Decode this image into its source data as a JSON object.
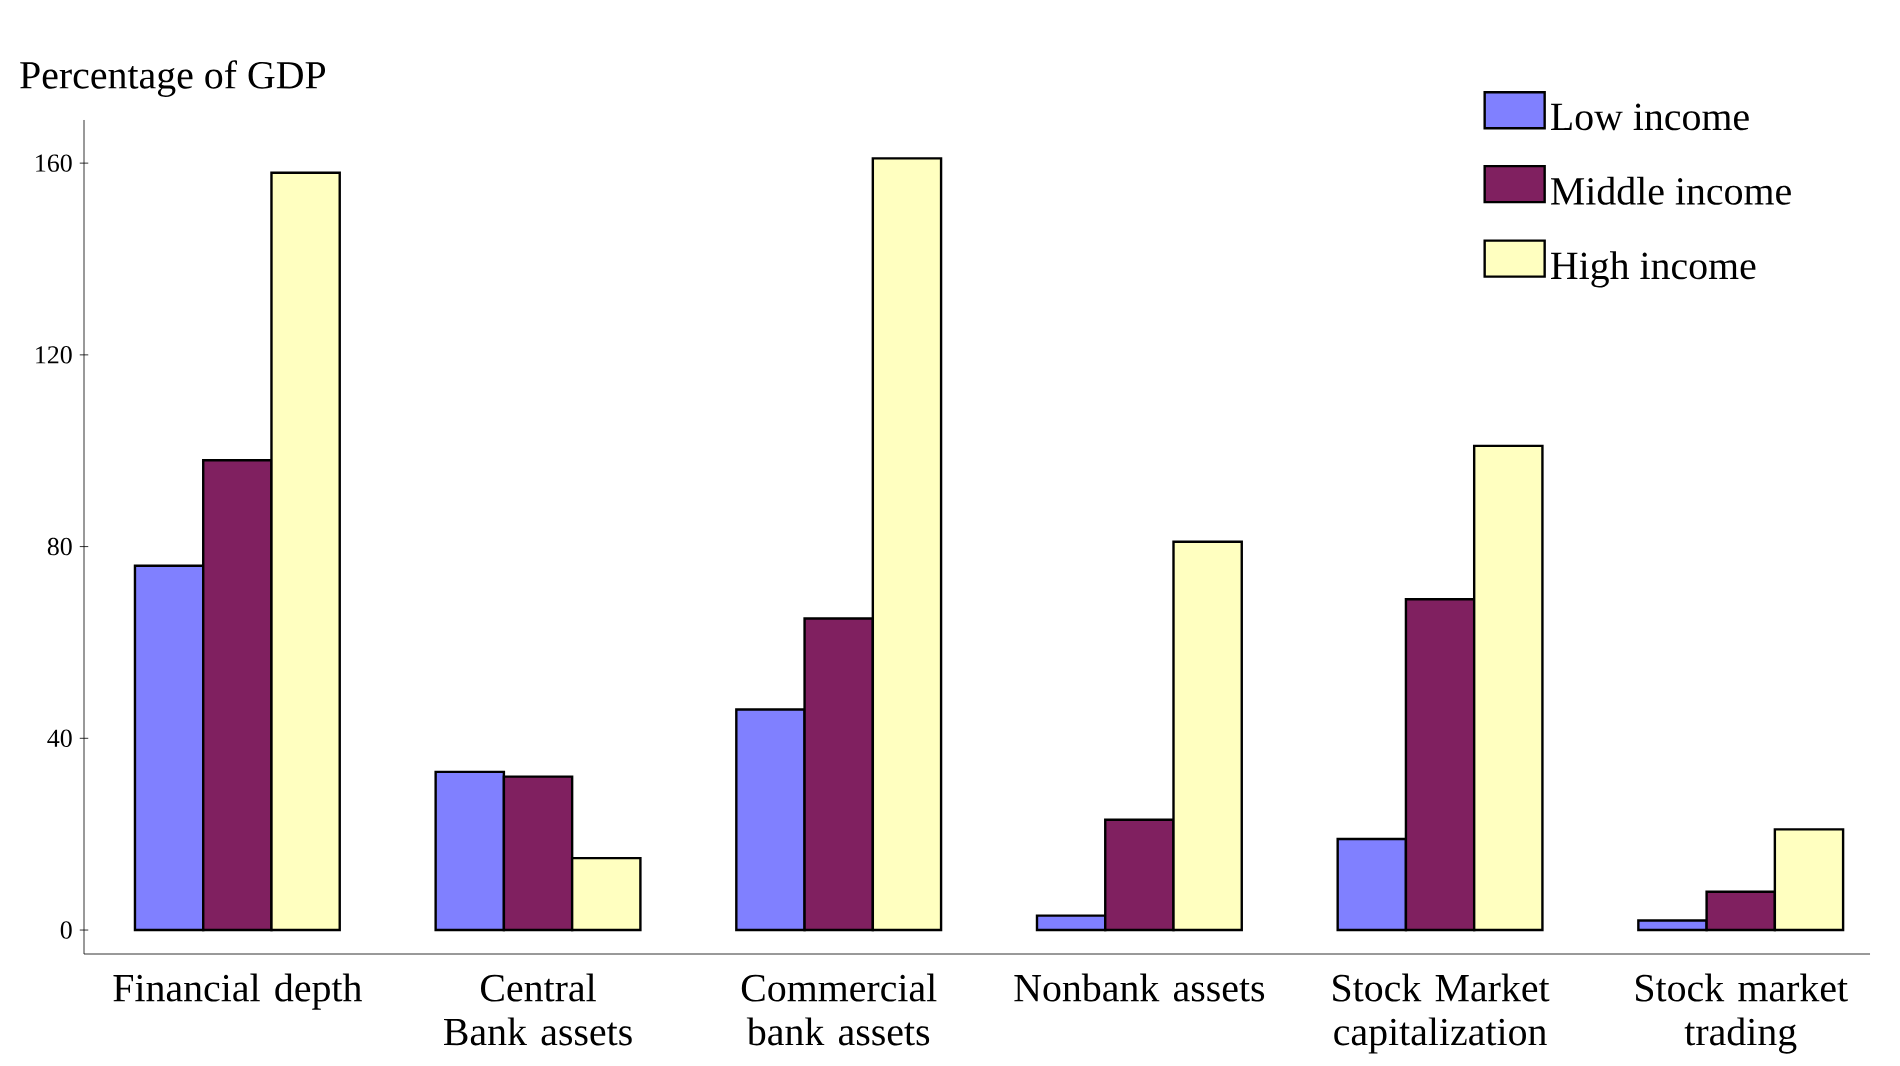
{
  "chart_data": {
    "type": "bar",
    "ylabel": "Percentage of GDP",
    "categories": [
      "Financial depth",
      "Central Bank assets",
      "Commercial bank assets",
      "Nonbank assets",
      "Stock Market capitalization",
      "Stock market trading"
    ],
    "series": [
      {
        "name": "Low income",
        "color": "#8080ff",
        "values": [
          76,
          33,
          46,
          3,
          19,
          2
        ]
      },
      {
        "name": "Middle income",
        "color": "#802060",
        "values": [
          98,
          32,
          65,
          23,
          69,
          8
        ]
      },
      {
        "name": "High income",
        "color": "#ffffc0",
        "values": [
          158,
          15,
          161,
          81,
          101,
          21
        ]
      }
    ],
    "ylim": [
      -5,
      169
    ],
    "yticks": [
      0,
      40,
      80,
      120,
      160
    ],
    "grid": false,
    "legend": "top right"
  }
}
